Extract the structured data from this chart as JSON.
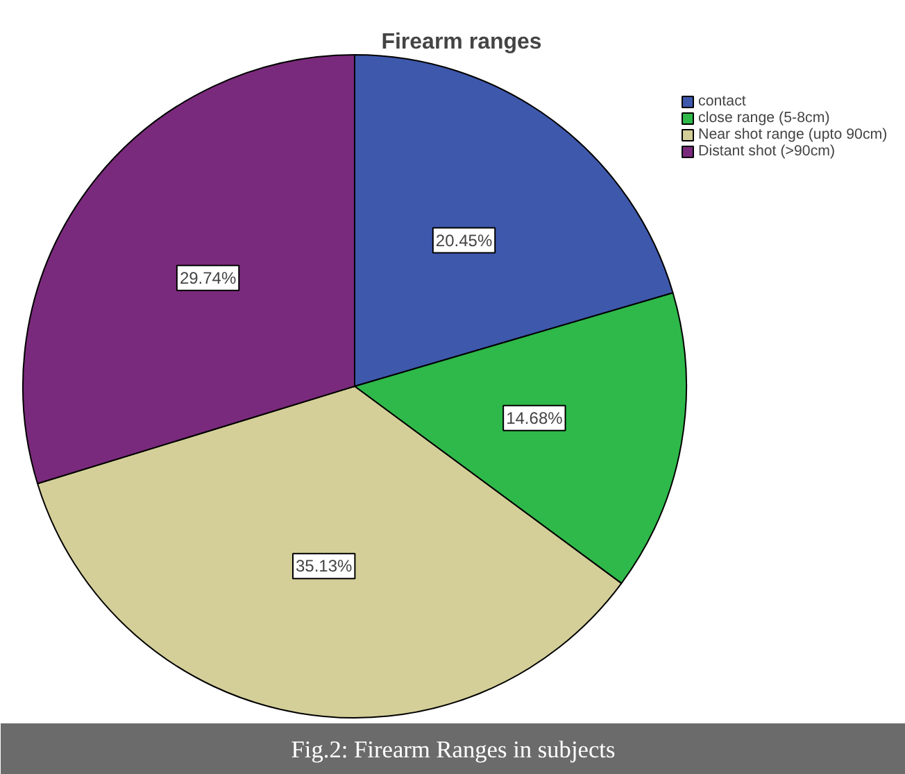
{
  "chart_data": {
    "type": "pie",
    "title": "Firearm ranges",
    "categories": [
      "contact",
      "close range (5-8cm)",
      "Near shot range (upto 90cm)",
      "Distant shot (>90cm)"
    ],
    "values": [
      20.45,
      14.68,
      35.13,
      29.74
    ],
    "colors": [
      "#3e58ac",
      "#2eb94a",
      "#d4cf98",
      "#7a2a7c"
    ],
    "value_labels": [
      "20.45%",
      "14.68%",
      "35.13%",
      "29.74%"
    ],
    "legend": "top right",
    "annotations": [
      "Fig.2: Firearm Ranges in subjects"
    ]
  }
}
